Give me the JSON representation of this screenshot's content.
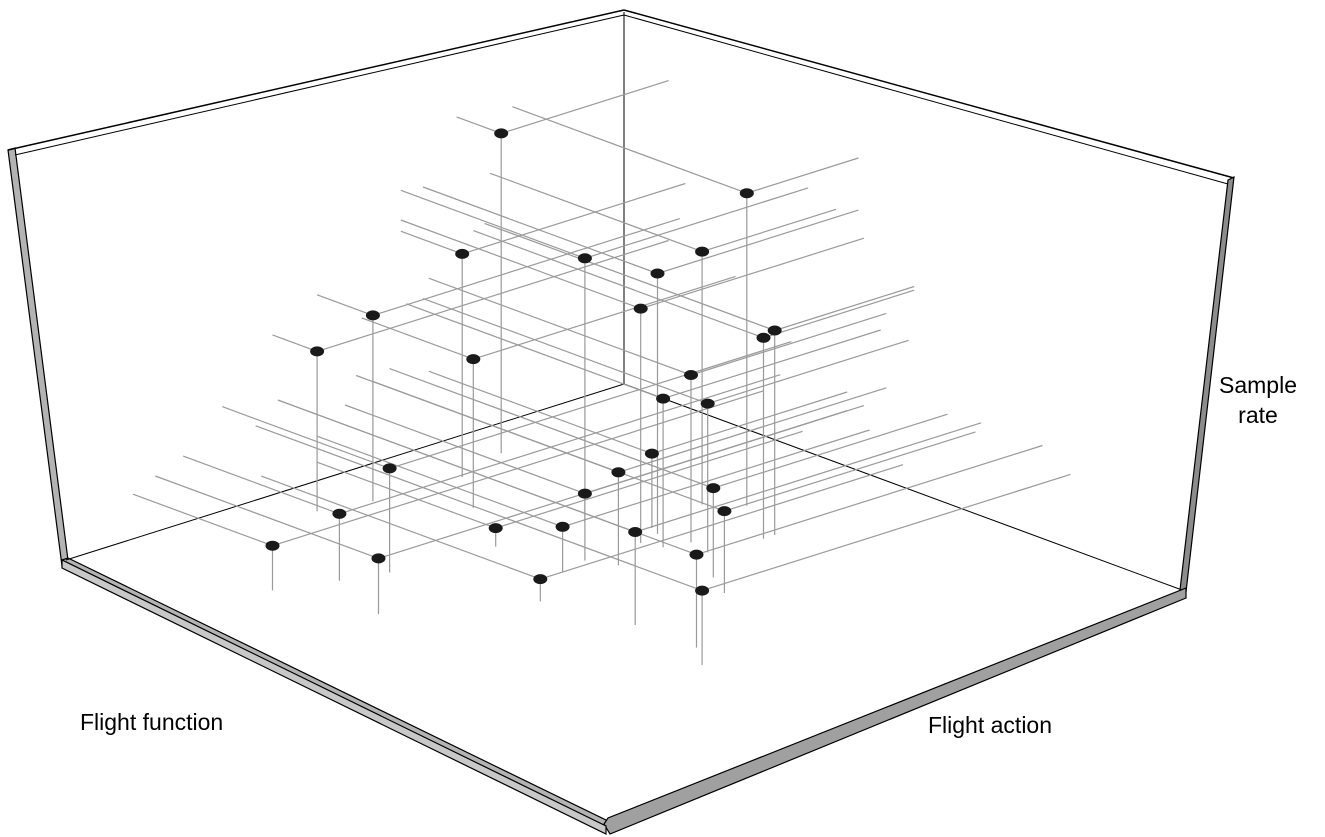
{
  "chart_data": {
    "type": "scatter",
    "projection": "3d",
    "title": "",
    "xlabel": "Flight function",
    "ylabel": "Flight action",
    "zlabel": "Sample rate",
    "drop_lines": true,
    "projection_lines": true,
    "colors": {
      "point": "#1a1a1a",
      "guide_line": "#9a9a9a",
      "frame": "#000000",
      "frame_face": "#b3b3b3"
    },
    "points": [
      {
        "x": 0.3,
        "y": 0.08,
        "z": 0.86
      },
      {
        "x": 0.2,
        "y": 0.42,
        "z": 0.84
      },
      {
        "x": 0.24,
        "y": 0.38,
        "z": 0.68
      },
      {
        "x": 0.4,
        "y": 0.33,
        "z": 0.71
      },
      {
        "x": 0.4,
        "y": 0.43,
        "z": 0.63
      },
      {
        "x": 0.36,
        "y": 0.42,
        "z": 0.7
      },
      {
        "x": 0.4,
        "y": 0.11,
        "z": 0.6
      },
      {
        "x": 0.25,
        "y": 0.52,
        "z": 0.55
      },
      {
        "x": 0.27,
        "y": 0.52,
        "z": 0.54
      },
      {
        "x": 0.35,
        "y": 0.47,
        "z": 0.45
      },
      {
        "x": 0.39,
        "y": 0.46,
        "z": 0.4
      },
      {
        "x": 0.36,
        "y": 0.51,
        "z": 0.4
      },
      {
        "x": 0.47,
        "y": 0.2,
        "z": 0.4
      },
      {
        "x": 0.63,
        "y": 0.08,
        "z": 0.43
      },
      {
        "x": 0.55,
        "y": 0.1,
        "z": 0.5
      },
      {
        "x": 0.62,
        "y": 0.64,
        "z": 0.25
      },
      {
        "x": 0.42,
        "y": 0.58,
        "z": 0.24
      },
      {
        "x": 0.48,
        "y": 0.47,
        "z": 0.25
      },
      {
        "x": 0.35,
        "y": 0.4,
        "z": 0.2
      },
      {
        "x": 0.72,
        "y": 0.3,
        "z": 0.28
      },
      {
        "x": 0.45,
        "y": 0.63,
        "z": 0.22
      },
      {
        "x": 0.5,
        "y": 0.43,
        "z": 0.18
      },
      {
        "x": 0.62,
        "y": 0.75,
        "z": 0.25
      },
      {
        "x": 0.66,
        "y": 0.8,
        "z": 0.2
      },
      {
        "x": 0.55,
        "y": 0.44,
        "z": 0.12
      },
      {
        "x": 0.79,
        "y": 0.28,
        "z": 0.18
      },
      {
        "x": 0.84,
        "y": 0.4,
        "z": 0.15
      },
      {
        "x": 0.88,
        "y": 0.25,
        "z": 0.12
      },
      {
        "x": 0.65,
        "y": 0.5,
        "z": 0.06
      },
      {
        "x": 0.55,
        "y": 0.32,
        "z": 0.05
      }
    ]
  }
}
